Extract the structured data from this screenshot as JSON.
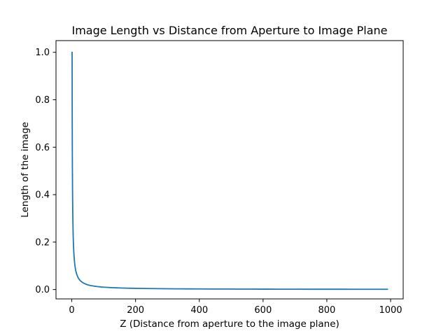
{
  "chart_data": {
    "type": "line",
    "title": "Image Length vs Distance from Aperture to Image Plane",
    "xlabel": "Z (Distance from aperture to the image plane)",
    "ylabel": "Length of the image",
    "xlim": [
      -49.5,
      1039.5
    ],
    "ylim": [
      -0.0395,
      1.0494
    ],
    "grid": false,
    "legend": "none",
    "x_ticks": [
      0,
      200,
      400,
      600,
      800,
      1000
    ],
    "x_tick_labels": [
      "0",
      "200",
      "400",
      "600",
      "800",
      "1000"
    ],
    "y_ticks": [
      0.0,
      0.2,
      0.4,
      0.6,
      0.8,
      1.0
    ],
    "y_tick_labels": [
      "0.0",
      "0.2",
      "0.4",
      "0.6",
      "0.8",
      "1.0"
    ],
    "series": [
      {
        "color": "#1f77b4",
        "x": [
          1,
          1.25,
          1.5,
          1.75,
          2,
          2.5,
          3,
          3.5,
          4,
          4.5,
          5,
          6,
          7,
          8,
          9,
          10,
          11,
          12,
          13,
          14,
          15,
          17,
          19,
          21,
          23,
          25,
          28,
          31,
          35,
          40,
          45,
          50,
          55,
          60,
          70,
          80,
          90,
          100,
          110,
          120,
          130,
          140,
          150,
          170,
          190,
          210,
          230,
          250,
          275,
          300,
          330,
          360,
          400,
          440,
          480,
          520,
          560,
          600,
          650,
          700,
          750,
          800,
          850,
          900,
          950,
          990
        ],
        "y": [
          1.0,
          0.8,
          0.6667,
          0.5714,
          0.5,
          0.4,
          0.3333,
          0.2857,
          0.25,
          0.2222,
          0.2,
          0.1667,
          0.1429,
          0.125,
          0.1111,
          0.1,
          0.0909,
          0.0833,
          0.0769,
          0.0714,
          0.0667,
          0.0588,
          0.0526,
          0.0476,
          0.0435,
          0.04,
          0.0357,
          0.0323,
          0.0286,
          0.025,
          0.0222,
          0.02,
          0.0182,
          0.0167,
          0.0143,
          0.0125,
          0.0111,
          0.01,
          0.0091,
          0.0083,
          0.0077,
          0.0071,
          0.0067,
          0.0059,
          0.0053,
          0.0048,
          0.0043,
          0.004,
          0.0036,
          0.0033,
          0.003,
          0.0028,
          0.0025,
          0.0023,
          0.0021,
          0.0019,
          0.0018,
          0.0017,
          0.0015,
          0.0014,
          0.0013,
          0.0013,
          0.0012,
          0.0011,
          0.0011,
          0.001
        ]
      }
    ]
  }
}
